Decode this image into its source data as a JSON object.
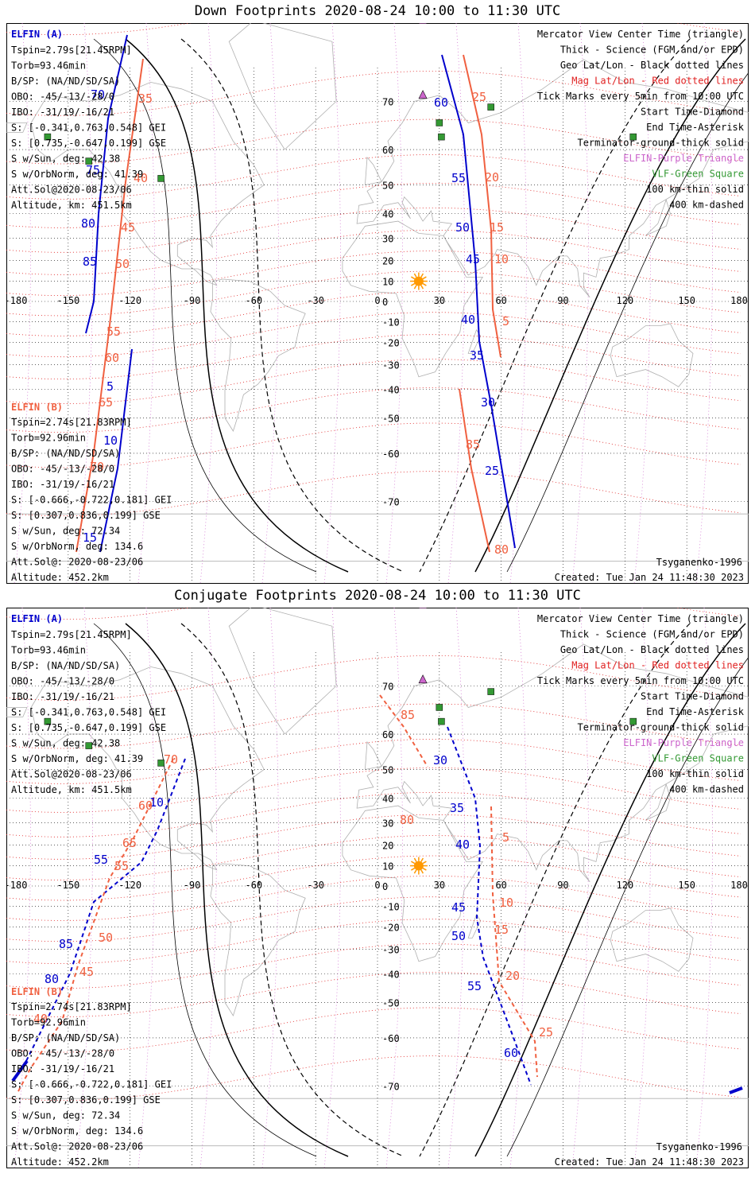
{
  "colors": {
    "elfin_a": "#0000cc",
    "elfin_b": "#f06040",
    "geo_grid": "#000000",
    "mag_grid": "#e02020",
    "elfin_station": "#cc66cc",
    "vlf_station": "#339933",
    "sun": "#ff9900"
  },
  "panels": [
    {
      "id": "down",
      "title": "Down Footprints 2020-08-24 10:00 to 11:30 UTC",
      "left_info": {
        "a_header": "ELFIN (A)",
        "a_lines": [
          "Tspin=2.79s[21.45RPM]",
          "Torb=93.46min",
          "B/SP: (NA/ND/SD/SA)",
          "OBO: -45/-13/-28/0",
          "IBO: -31/19/-16/21",
          "S: [-0.341,0.763,0.548] GEI",
          "S: [0.735,-0.647,0.199] GSE",
          "S w/Sun, deg: 42.38",
          "S w/OrbNorm, deg: 41.39",
          "Att.Sol@2020-08-23/06",
          "Altitude, km: 451.5km"
        ],
        "b_header": "ELFIN (B)",
        "b_lines": [
          "Tspin=2.74s[21.83RPM]",
          "Torb=92.96min",
          "B/SP: (NA/ND/SD/SA)",
          "OBO: -45/-13/-28/0",
          "IBO: -31/19/-16/21",
          "S: [-0.666,-0.722,0.181] GEI",
          "S: [0.307,0.836,0.199] GSE",
          "S w/Sun, deg: 72.34",
          "S w/OrbNorm, deg: 134.6",
          "Att.Sol@: 2020-08-23/06",
          "Altitude: 452.2km"
        ]
      },
      "legend": [
        {
          "text": "Mercator View Center Time (triangle)",
          "color": "#000000"
        },
        {
          "text": "Thick - Science (FGM and/or EPD)",
          "color": "#000000"
        },
        {
          "text": "Geo Lat/Lon - Black dotted lines",
          "color": "#000000"
        },
        {
          "text": "Mag Lat/Lon - Red dotted lines",
          "color": "#e02020"
        },
        {
          "text": "Tick Marks every 5min from 10:00 UTC",
          "color": "#000000"
        },
        {
          "text": "Start Time-Diamond",
          "color": "#000000"
        },
        {
          "text": "End Time-Asterisk",
          "color": "#000000"
        },
        {
          "text": "Terminator-ground-thick solid",
          "color": "#000000"
        },
        {
          "text": "ELFIN-Purple Triangle",
          "color": "#cc66cc"
        },
        {
          "text": "VLF-Green Square",
          "color": "#339933"
        },
        {
          "text": "100 km-thin solid",
          "color": "#000000"
        },
        {
          "text": "400 km-dashed",
          "color": "#000000"
        }
      ],
      "model": "Tsyganenko-1996",
      "created": "Created: Tue Jan 24 11:48:30 2023",
      "lon_labels": [
        "-180",
        "-150",
        "-120",
        "-90",
        "-60",
        "-30",
        "0",
        "30",
        "60",
        "90",
        "120",
        "150",
        "180"
      ],
      "lat_labels": [
        "70",
        "60",
        "50",
        "40",
        "30",
        "20",
        "10",
        "0",
        "-10",
        "-20",
        "-30",
        "-40",
        "-50",
        "-60",
        "-70"
      ],
      "track_labels_a": [
        "70",
        "75",
        "80",
        "85",
        "5",
        "10",
        "15",
        "60",
        "55",
        "50",
        "45",
        "40",
        "35",
        "30",
        "25"
      ],
      "track_labels_b": [
        "35",
        "40",
        "45",
        "50",
        "55",
        "60",
        "65",
        "70",
        "25",
        "20",
        "15",
        "10",
        "5",
        "85",
        "80"
      ]
    },
    {
      "id": "conjugate",
      "title": "Conjugate Footprints 2020-08-24 10:00 to 11:30 UTC",
      "left_info": {
        "a_header": "ELFIN (A)",
        "a_lines": [
          "Tspin=2.79s[21.45RPM]",
          "Torb=93.46min",
          "B/SP: (NA/ND/SD/SA)",
          "OBO: -45/-13/-28/0",
          "IBO: -31/19/-16/21",
          "S: [-0.341,0.763,0.548] GEI",
          "S: [0.735,-0.647,0.199] GSE",
          "S w/Sun, deg: 42.38",
          "S w/OrbNorm, deg: 41.39",
          "Att.Sol@2020-08-23/06",
          "Altitude, km: 451.5km"
        ],
        "b_header": "ELFIN (B)",
        "b_lines": [
          "Tspin=2.74s[21.83RPM]",
          "Torb=92.96min",
          "B/SP: (NA/ND/SD/SA)",
          "OBO: -45/-13/-28/0",
          "IBO: -31/19/-16/21",
          "S: [-0.666,-0.722,0.181] GEI",
          "S: [0.307,0.836,0.199] GSE",
          "S w/Sun, deg: 72.34",
          "S w/OrbNorm, deg: 134.6",
          "Att.Sol@: 2020-08-23/06",
          "Altitude: 452.2km"
        ]
      },
      "legend": [
        {
          "text": "Mercator View Center Time (triangle)",
          "color": "#000000"
        },
        {
          "text": "Thick - Science (FGM and/or EPD)",
          "color": "#000000"
        },
        {
          "text": "Geo Lat/Lon - Black dotted lines",
          "color": "#000000"
        },
        {
          "text": "Mag Lat/Lon - Red dotted lines",
          "color": "#e02020"
        },
        {
          "text": "Tick Marks every 5min from 10:00 UTC",
          "color": "#000000"
        },
        {
          "text": "Start Time-Diamond",
          "color": "#000000"
        },
        {
          "text": "End Time-Asterisk",
          "color": "#000000"
        },
        {
          "text": "Terminator-ground-thick solid",
          "color": "#000000"
        },
        {
          "text": "ELFIN-Purple Triangle",
          "color": "#cc66cc"
        },
        {
          "text": "VLF-Green Square",
          "color": "#339933"
        },
        {
          "text": "100 km-thin solid",
          "color": "#000000"
        },
        {
          "text": "400 km-dashed",
          "color": "#000000"
        }
      ],
      "model": "Tsyganenko-1996",
      "created": "Created: Tue Jan 24 11:48:30 2023",
      "lon_labels": [
        "-180",
        "-150",
        "-120",
        "-90",
        "-60",
        "-30",
        "0",
        "30",
        "60",
        "90",
        "120",
        "150",
        "180"
      ],
      "lat_labels": [
        "70",
        "60",
        "50",
        "40",
        "30",
        "20",
        "10",
        "0",
        "-10",
        "-20",
        "-30",
        "-40",
        "-50",
        "-60",
        "-70"
      ],
      "track_labels_a": [
        "10",
        "55",
        "85",
        "80",
        "30",
        "35",
        "40",
        "45",
        "50",
        "55",
        "60"
      ],
      "track_labels_b": [
        "70",
        "60",
        "65",
        "55",
        "50",
        "45",
        "40",
        "85",
        "80",
        "5",
        "10",
        "15",
        "20",
        "25"
      ]
    }
  ]
}
